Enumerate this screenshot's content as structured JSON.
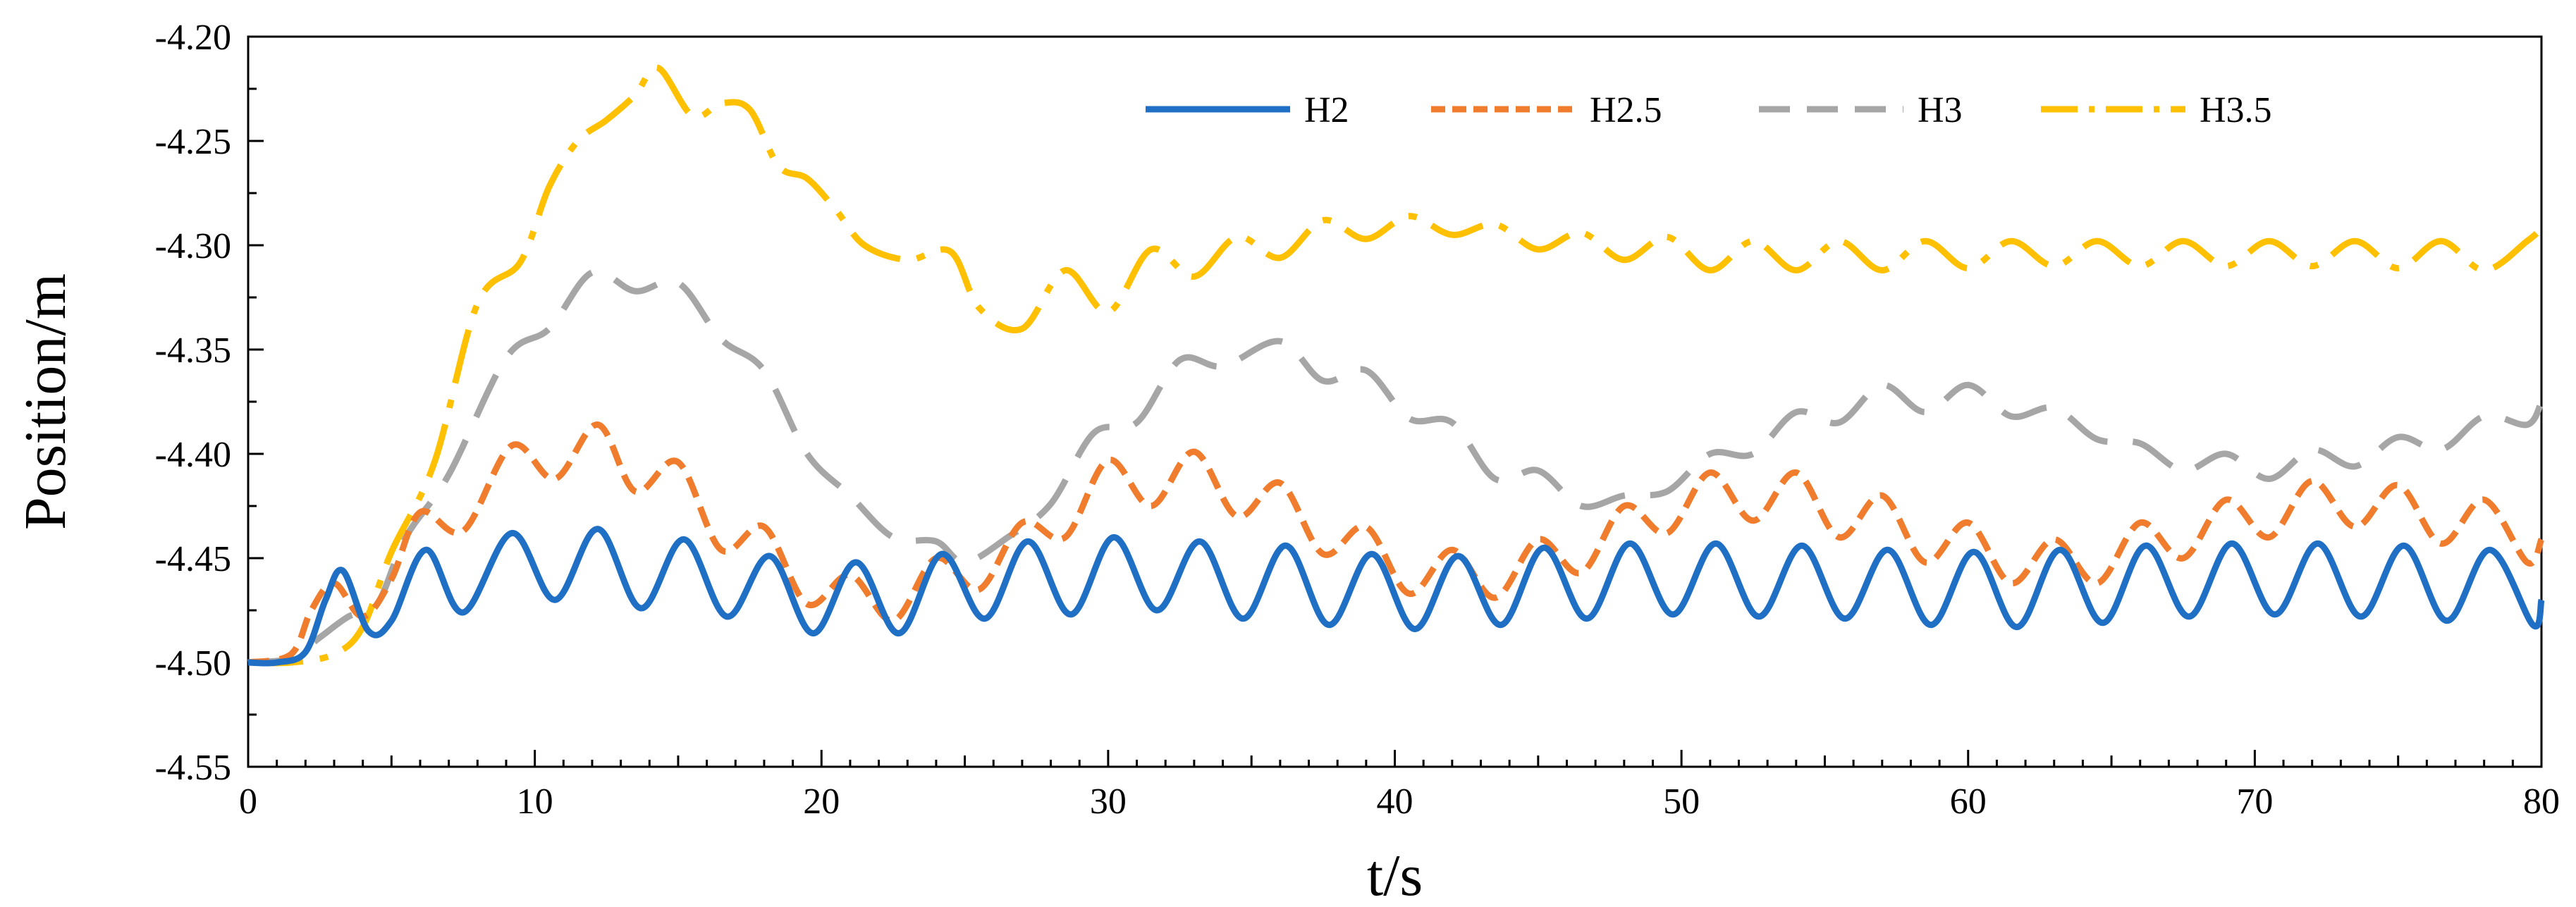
{
  "chart_data": {
    "type": "line",
    "title": "",
    "xlabel": "t/s",
    "ylabel": "Position/m",
    "xlim": [
      0,
      80
    ],
    "ylim": [
      -4.55,
      -4.2
    ],
    "x_ticks": [
      0,
      10,
      20,
      30,
      40,
      50,
      60,
      70,
      80
    ],
    "x_tick_labels": [
      "0",
      "10",
      "20",
      "30",
      "40",
      "50",
      "60",
      "70",
      "80"
    ],
    "y_ticks": [
      -4.2,
      -4.25,
      -4.3,
      -4.35,
      -4.4,
      -4.45,
      -4.5,
      -4.55
    ],
    "y_tick_labels": [
      "-4.20",
      "-4.25",
      "-4.30",
      "-4.35",
      "-4.40",
      "-4.45",
      "-4.50",
      "-4.55"
    ],
    "grid": false,
    "legend_position": "top-right",
    "series": [
      {
        "name": "H2",
        "color": "#1f6fc5",
        "dash": "solid",
        "x": [
          0,
          1,
          2,
          2.7,
          3.3,
          4.2,
          5.0,
          6.2,
          7.5,
          9.2,
          10.7,
          12.2,
          13.7,
          15.2,
          16.7,
          18.2,
          19.7,
          21.2,
          22.7,
          24.2,
          25.7,
          27.2,
          28.7,
          30.2,
          31.7,
          33.2,
          34.7,
          36.2,
          37.7,
          39.2,
          40.7,
          42.2,
          43.7,
          45.2,
          46.7,
          48.2,
          49.7,
          51.2,
          52.7,
          54.2,
          55.7,
          57.2,
          58.7,
          60.2,
          61.7,
          63.2,
          64.7,
          66.2,
          67.7,
          69.2,
          70.7,
          72.2,
          73.7,
          75.2,
          76.7,
          78.2,
          79.7,
          80
        ],
        "y": [
          -4.5,
          -4.5,
          -4.495,
          -4.47,
          -4.456,
          -4.485,
          -4.48,
          -4.446,
          -4.476,
          -4.438,
          -4.47,
          -4.436,
          -4.474,
          -4.441,
          -4.478,
          -4.449,
          -4.486,
          -4.452,
          -4.486,
          -4.448,
          -4.479,
          -4.442,
          -4.477,
          -4.44,
          -4.475,
          -4.442,
          -4.479,
          -4.444,
          -4.482,
          -4.448,
          -4.484,
          -4.449,
          -4.482,
          -4.445,
          -4.479,
          -4.443,
          -4.477,
          -4.443,
          -4.478,
          -4.444,
          -4.479,
          -4.446,
          -4.482,
          -4.447,
          -4.483,
          -4.446,
          -4.481,
          -4.444,
          -4.478,
          -4.443,
          -4.477,
          -4.443,
          -4.478,
          -4.444,
          -4.48,
          -4.446,
          -4.482,
          -4.47
        ]
      },
      {
        "name": "H2.5",
        "color": "#f07d2e",
        "dash": "10,5",
        "x": [
          0,
          1.5,
          2.2,
          3.0,
          4.0,
          5.0,
          6.0,
          7.5,
          9.2,
          10.7,
          12.2,
          13.5,
          15.0,
          16.5,
          18.0,
          19.5,
          21.0,
          22.5,
          24.0,
          25.5,
          27.0,
          28.5,
          30.0,
          31.5,
          33.0,
          34.5,
          36.0,
          37.5,
          39.0,
          40.5,
          42.0,
          43.5,
          45.0,
          46.5,
          48.0,
          49.5,
          51.0,
          52.5,
          54.0,
          55.5,
          57.0,
          58.5,
          60.0,
          61.5,
          63.0,
          64.5,
          66.0,
          67.5,
          69.0,
          70.5,
          72.0,
          73.5,
          75.0,
          76.5,
          78.0,
          79.5,
          80
        ],
        "y": [
          -4.5,
          -4.496,
          -4.475,
          -4.462,
          -4.478,
          -4.46,
          -4.428,
          -4.437,
          -4.396,
          -4.412,
          -4.386,
          -4.418,
          -4.404,
          -4.446,
          -4.435,
          -4.472,
          -4.458,
          -4.48,
          -4.45,
          -4.465,
          -4.433,
          -4.44,
          -4.403,
          -4.425,
          -4.399,
          -4.43,
          -4.414,
          -4.448,
          -4.435,
          -4.467,
          -4.446,
          -4.469,
          -4.441,
          -4.457,
          -4.425,
          -4.438,
          -4.409,
          -4.432,
          -4.409,
          -4.44,
          -4.42,
          -4.452,
          -4.433,
          -4.462,
          -4.441,
          -4.462,
          -4.433,
          -4.45,
          -4.422,
          -4.44,
          -4.413,
          -4.435,
          -4.415,
          -4.443,
          -4.422,
          -4.452,
          -4.441
        ]
      },
      {
        "name": "H3",
        "color": "#a6a6a6",
        "dash": "22,12",
        "x": [
          0,
          1.5,
          2.5,
          3.5,
          4.5,
          5.5,
          7.0,
          9.0,
          10.5,
          12.0,
          13.5,
          15.0,
          16.5,
          18.0,
          19.5,
          21.0,
          22.5,
          24.0,
          25.0,
          26.5,
          28.0,
          29.5,
          31.0,
          32.5,
          34.0,
          36.0,
          37.5,
          39.0,
          40.5,
          42.0,
          43.5,
          45.0,
          46.5,
          48.0,
          49.5,
          51.0,
          52.5,
          54.0,
          55.5,
          57.0,
          58.5,
          60.0,
          61.5,
          63.0,
          64.5,
          66.0,
          67.5,
          69.0,
          70.5,
          72.0,
          73.5,
          75.0,
          76.5,
          78.0,
          79.5,
          80
        ],
        "y": [
          -4.5,
          -4.498,
          -4.488,
          -4.478,
          -4.472,
          -4.44,
          -4.41,
          -4.354,
          -4.34,
          -4.313,
          -4.322,
          -4.318,
          -4.345,
          -4.36,
          -4.4,
          -4.42,
          -4.44,
          -4.442,
          -4.452,
          -4.44,
          -4.424,
          -4.39,
          -4.385,
          -4.355,
          -4.358,
          -4.346,
          -4.365,
          -4.36,
          -4.383,
          -4.385,
          -4.412,
          -4.408,
          -4.425,
          -4.42,
          -4.418,
          -4.4,
          -4.4,
          -4.38,
          -4.385,
          -4.367,
          -4.38,
          -4.367,
          -4.382,
          -4.378,
          -4.393,
          -4.395,
          -4.408,
          -4.4,
          -4.412,
          -4.398,
          -4.406,
          -4.392,
          -4.398,
          -4.382,
          -4.386,
          -4.375
        ]
      },
      {
        "name": "H3.5",
        "color": "#ffc000",
        "dash": "26,8,4,8",
        "x": [
          0,
          1.5,
          3.0,
          4.0,
          5.0,
          6.5,
          8.0,
          9.5,
          10.5,
          11.5,
          12.5,
          13.5,
          14.3,
          15.5,
          16.5,
          17.5,
          18.5,
          19.5,
          20.5,
          21.5,
          23.0,
          24.5,
          25.5,
          27.0,
          28.5,
          30.0,
          31.5,
          33.0,
          34.5,
          36.0,
          37.5,
          39.0,
          40.5,
          42.0,
          43.5,
          45.0,
          46.5,
          48.0,
          49.5,
          51.0,
          52.5,
          54.0,
          55.5,
          57.0,
          58.5,
          60.0,
          61.5,
          63.0,
          64.5,
          66.0,
          67.5,
          69.0,
          70.5,
          72.0,
          73.5,
          75.0,
          76.5,
          78.0,
          79.5,
          80
        ],
        "y": [
          -4.5,
          -4.5,
          -4.496,
          -4.483,
          -4.447,
          -4.404,
          -4.328,
          -4.308,
          -4.272,
          -4.25,
          -4.24,
          -4.228,
          -4.215,
          -4.238,
          -4.232,
          -4.235,
          -4.262,
          -4.268,
          -4.283,
          -4.3,
          -4.307,
          -4.303,
          -4.33,
          -4.34,
          -4.312,
          -4.332,
          -4.302,
          -4.315,
          -4.296,
          -4.306,
          -4.288,
          -4.297,
          -4.286,
          -4.295,
          -4.29,
          -4.302,
          -4.294,
          -4.307,
          -4.296,
          -4.312,
          -4.298,
          -4.312,
          -4.298,
          -4.312,
          -4.298,
          -4.311,
          -4.298,
          -4.31,
          -4.298,
          -4.31,
          -4.298,
          -4.31,
          -4.298,
          -4.31,
          -4.298,
          -4.311,
          -4.298,
          -4.312,
          -4.298,
          -4.292
        ]
      }
    ]
  }
}
